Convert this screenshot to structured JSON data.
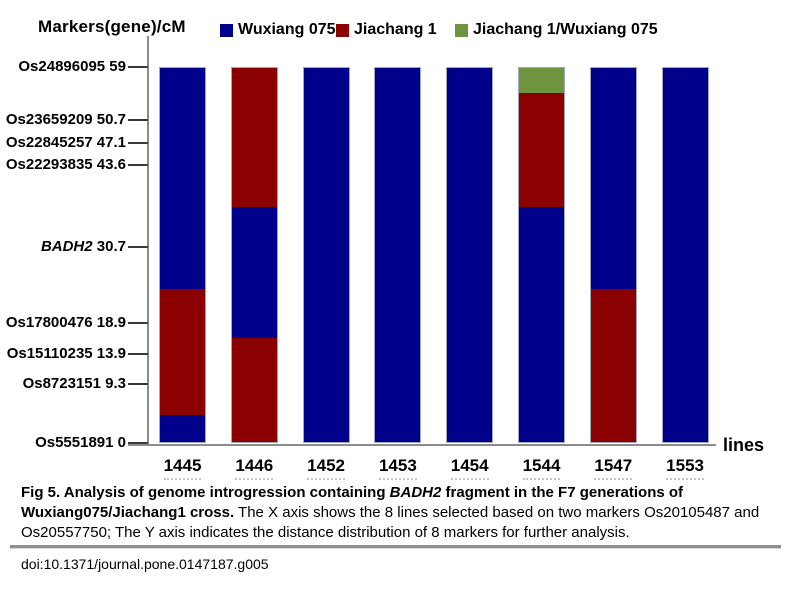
{
  "colors": {
    "wuxiang_blue": "#00008B",
    "jiachang_red": "#8B0000",
    "hetero_green": "#6E9440",
    "axis_gray": "#8C8C8C",
    "tick_dark": "#3A3A3A"
  },
  "chart_data": {
    "type": "bar",
    "stacked": true,
    "orientation": "vertical",
    "ylabel": "Markers(gene)/cM",
    "xlabel": "lines",
    "ylim": [
      0,
      59
    ],
    "grid": false,
    "legend_position": "top",
    "legend": [
      {
        "label": "Wuxiang 075",
        "color_key": "wuxiang_blue"
      },
      {
        "label": "Jiachang 1",
        "color_key": "jiachang_red"
      },
      {
        "label": "Jiachang 1/Wuxiang 075",
        "color_key": "hetero_green"
      }
    ],
    "y_markers": [
      {
        "gene": "Os24896095",
        "pos_label": "59",
        "cM": 59,
        "italic": false
      },
      {
        "gene": "Os23659209",
        "pos_label": "50.7",
        "cM": 50.7,
        "italic": false
      },
      {
        "gene": "Os22845257",
        "pos_label": "47.1",
        "cM": 47.1,
        "italic": false
      },
      {
        "gene": "Os22293835",
        "pos_label": "43.6",
        "cM": 43.6,
        "italic": false
      },
      {
        "gene": "BADH2",
        "pos_label": "30.7",
        "cM": 30.7,
        "italic": true
      },
      {
        "gene": "Os17800476",
        "pos_label": "18.9",
        "cM": 18.9,
        "italic": false
      },
      {
        "gene": "Os15110235",
        "pos_label": "13.9",
        "cM": 13.9,
        "italic": false
      },
      {
        "gene": "Os8723151",
        "pos_label": "9.3",
        "cM": 9.3,
        "italic": false
      },
      {
        "gene": "Os5551891",
        "pos_label": "0",
        "cM": 0,
        "italic": false
      }
    ],
    "categories": [
      "1445",
      "1446",
      "1452",
      "1453",
      "1454",
      "1544",
      "1547",
      "1553"
    ],
    "bars": [
      {
        "line": "1445",
        "segments": [
          {
            "genotype": "Wuxiang 075",
            "from_cM": 0,
            "to_cM": 4.3
          },
          {
            "genotype": "Jiachang 1",
            "from_cM": 4.3,
            "to_cM": 24.2
          },
          {
            "genotype": "Wuxiang 075",
            "from_cM": 24.2,
            "to_cM": 59
          }
        ]
      },
      {
        "line": "1446",
        "segments": [
          {
            "genotype": "Jiachang 1",
            "from_cM": 0,
            "to_cM": 16.4
          },
          {
            "genotype": "Wuxiang 075",
            "from_cM": 16.4,
            "to_cM": 37.1
          },
          {
            "genotype": "Jiachang 1",
            "from_cM": 37.1,
            "to_cM": 59
          }
        ]
      },
      {
        "line": "1452",
        "segments": [
          {
            "genotype": "Wuxiang 075",
            "from_cM": 0,
            "to_cM": 59
          }
        ]
      },
      {
        "line": "1453",
        "segments": [
          {
            "genotype": "Wuxiang 075",
            "from_cM": 0,
            "to_cM": 59
          }
        ]
      },
      {
        "line": "1454",
        "segments": [
          {
            "genotype": "Wuxiang 075",
            "from_cM": 0,
            "to_cM": 59
          }
        ]
      },
      {
        "line": "1544",
        "segments": [
          {
            "genotype": "Wuxiang 075",
            "from_cM": 0,
            "to_cM": 37.1
          },
          {
            "genotype": "Jiachang 1",
            "from_cM": 37.1,
            "to_cM": 55
          },
          {
            "genotype": "Jiachang 1/Wuxiang 075",
            "from_cM": 55,
            "to_cM": 59
          }
        ]
      },
      {
        "line": "1547",
        "segments": [
          {
            "genotype": "Jiachang 1",
            "from_cM": 0,
            "to_cM": 24.2
          },
          {
            "genotype": "Wuxiang 075",
            "from_cM": 24.2,
            "to_cM": 59
          }
        ]
      },
      {
        "line": "1553",
        "segments": [
          {
            "genotype": "Wuxiang 075",
            "from_cM": 0,
            "to_cM": 59
          }
        ]
      }
    ]
  },
  "caption": {
    "fig_label": "Fig 5.",
    "bold_pre": " Analysis of genome introgression containing ",
    "gene": "BADH2",
    "bold_post": " fragment in the F7 generations of Wuxiang075/Jiachang1 cross.",
    "body": " The X axis shows the 8 lines selected based on two markers Os20105487 and Os20557750; The Y axis indicates the distance distribution of 8 markers for further analysis."
  },
  "doi": "doi:10.1371/journal.pone.0147187.g005"
}
